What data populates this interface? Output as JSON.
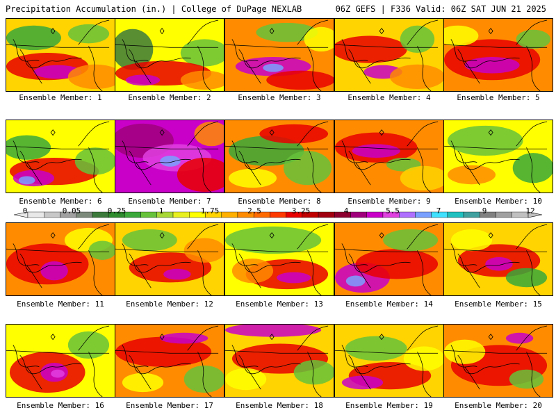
{
  "header": {
    "left": "Precipitation Accumulation (in.) | College of DuPage NEXLAB",
    "right": "06Z GEFS | F336 Valid: 06Z SAT JUN 21 2025"
  },
  "legend": {
    "labels": [
      "0",
      "0.05",
      "0.25",
      "1",
      "1.75",
      "2.5",
      "3.25",
      "4",
      "5.5",
      "7",
      "9",
      "12"
    ],
    "colors": [
      "#e8e8e8",
      "#c8c8c8",
      "#a0a0a0",
      "#7c8a7c",
      "#3c7a3c",
      "#2e8b2e",
      "#3aa83a",
      "#66c23a",
      "#a8d838",
      "#e8f020",
      "#ffff00",
      "#ffd400",
      "#ffb000",
      "#ff8c00",
      "#ff6a00",
      "#ff3a00",
      "#e80000",
      "#c00000",
      "#a00010",
      "#8c0030",
      "#a0007c",
      "#c800c8",
      "#e040e0",
      "#b070ff",
      "#7aa0ff",
      "#40e0ff",
      "#20c0c0",
      "#40a0a0",
      "#808080",
      "#a0a0a0",
      "#c0c0c0"
    ]
  },
  "panels": [
    {
      "label": "Ensemble Member: 1"
    },
    {
      "label": "Ensemble Member: 2"
    },
    {
      "label": "Ensemble Member: 3"
    },
    {
      "label": "Ensemble Member: 4"
    },
    {
      "label": "Ensemble Member: 5"
    },
    {
      "label": "Ensemble Member: 6"
    },
    {
      "label": "Ensemble Member: 7"
    },
    {
      "label": "Ensemble Member: 8"
    },
    {
      "label": "Ensemble Member: 9"
    },
    {
      "label": "Ensemble Member: 10"
    },
    {
      "label": "Ensemble Member: 11"
    },
    {
      "label": "Ensemble Member: 12"
    },
    {
      "label": "Ensemble Member: 13"
    },
    {
      "label": "Ensemble Member: 14"
    },
    {
      "label": "Ensemble Member: 15"
    },
    {
      "label": "Ensemble Member: 16"
    },
    {
      "label": "Ensemble Member: 17"
    },
    {
      "label": "Ensemble Member: 18"
    },
    {
      "label": "Ensemble Member: 19"
    },
    {
      "label": "Ensemble Member: 20"
    }
  ]
}
